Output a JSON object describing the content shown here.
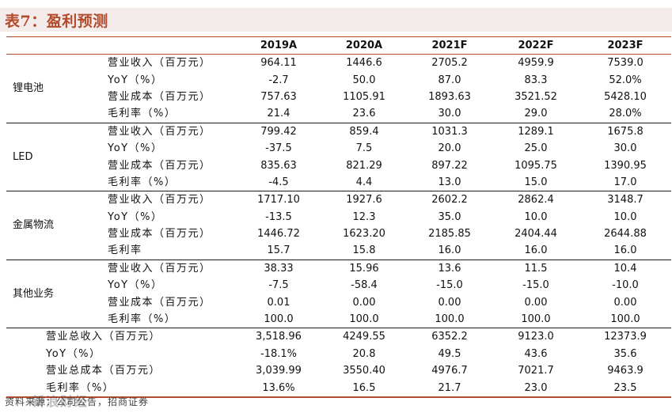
{
  "title": "表7：盈利预测",
  "columns": [
    "2019A",
    "2020A",
    "2021F",
    "2022F",
    "2023F"
  ],
  "segments": [
    {
      "name": "锂电池",
      "rows": [
        {
          "label": "营业收入（百万元）",
          "values": [
            "964.11",
            "1446.6",
            "2705.2",
            "4959.9",
            "7539.0"
          ]
        },
        {
          "label": "YoY（%）",
          "values": [
            "-2.7",
            "50.0",
            "87.0",
            "83.3",
            "52.0%"
          ]
        },
        {
          "label": "营业成本（百万元）",
          "values": [
            "757.63",
            "1105.91",
            "1893.63",
            "3521.52",
            "5428.10"
          ]
        },
        {
          "label": "毛利率（%）",
          "values": [
            "21.4",
            "23.6",
            "30.0",
            "29.0",
            "28.0%"
          ]
        }
      ]
    },
    {
      "name": "LED",
      "rows": [
        {
          "label": "营业收入（百万元）",
          "values": [
            "799.42",
            "859.4",
            "1031.3",
            "1289.1",
            "1675.8"
          ]
        },
        {
          "label": "YoY（%）",
          "values": [
            "-37.5",
            "7.5",
            "20.0",
            "25.0",
            "30.0"
          ]
        },
        {
          "label": "营业成本（百万元）",
          "values": [
            "835.63",
            "821.29",
            "897.22",
            "1095.75",
            "1390.95"
          ]
        },
        {
          "label": "毛利率（%）",
          "values": [
            "-4.5",
            "4.4",
            "13.0",
            "15.0",
            "17.0"
          ]
        }
      ]
    },
    {
      "name": "金属物流",
      "rows": [
        {
          "label": "营业收入（百万元）",
          "values": [
            "1717.10",
            "1927.6",
            "2602.2",
            "2862.4",
            "3148.7"
          ]
        },
        {
          "label": "YoY（%）",
          "values": [
            "-13.5",
            "12.3",
            "35.0",
            "10.0",
            "10.0"
          ]
        },
        {
          "label": "营业成本（百万元）",
          "values": [
            "1446.72",
            "1623.20",
            "2185.85",
            "2404.44",
            "2644.88"
          ]
        },
        {
          "label": "毛利率",
          "values": [
            "15.7",
            "15.8",
            "16.0",
            "16.0",
            "16.0"
          ]
        }
      ]
    },
    {
      "name": "其他业务",
      "rows": [
        {
          "label": "营业收入（百万元）",
          "values": [
            "38.33",
            "15.96",
            "13.6",
            "11.5",
            "10.4"
          ]
        },
        {
          "label": "YoY（%）",
          "values": [
            "-7.5",
            "-58.4",
            "-15.0",
            "-15.0",
            "-10.0"
          ]
        },
        {
          "label": "营业成本（百万元）",
          "values": [
            "0.01",
            "0.00",
            "0.00",
            "0.00",
            "0.00"
          ]
        },
        {
          "label": "毛利率（%）",
          "values": [
            "100.0",
            "100.0",
            "100.0",
            "100.0",
            "100.0"
          ]
        }
      ]
    }
  ],
  "totals": [
    {
      "label": "营业总收入（百万元）",
      "values": [
        "3,518.96",
        "4249.55",
        "6352.2",
        "9123.0",
        "12373.9"
      ]
    },
    {
      "label": "YoY（%）",
      "values": [
        "-18.1%",
        "20.8",
        "49.5",
        "43.6",
        "35.6"
      ]
    },
    {
      "label": "营业总成本（百万元）",
      "values": [
        "3,039.99",
        "3550.40",
        "4976.7",
        "7021.7",
        "9463.9"
      ]
    },
    {
      "label": "毛利率（%）",
      "values": [
        "13.6%",
        "16.5",
        "21.7",
        "23.0",
        "23.5"
      ]
    }
  ],
  "source": "资料来源：公司公告，招商证券",
  "watermark": "新浪财经"
}
